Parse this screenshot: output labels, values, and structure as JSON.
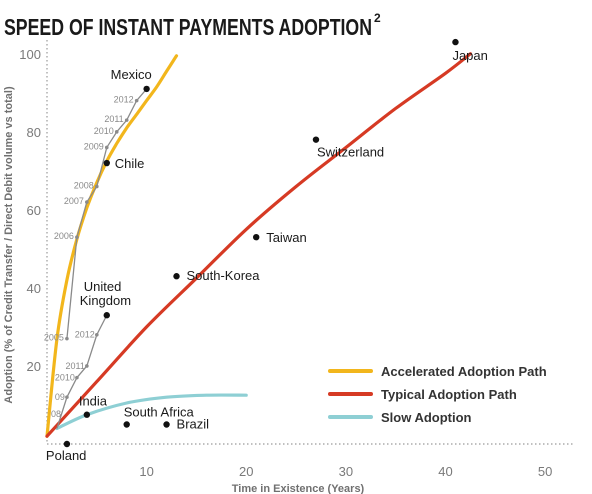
{
  "chart_data": {
    "type": "line",
    "title": "SPEED OF INSTANT PAYMENTS ADOPTION",
    "title_superscript": "2",
    "xlabel": "Time in Existence (Years)",
    "ylabel": "Adoption (% of Credit Transfer / Direct Debit  volume vs total)",
    "xlim": [
      0,
      53
    ],
    "ylim": [
      0,
      102
    ],
    "x_ticks": [
      "10",
      "20",
      "30",
      "40",
      "50"
    ],
    "y_ticks": [
      "20",
      "40",
      "60",
      "80",
      "100"
    ],
    "grid": false,
    "legend_position": "bottom-right",
    "series": [
      {
        "name": "Accelerated Adoption Path",
        "color": "#F2B61C",
        "x": [
          0,
          1,
          2,
          3,
          4,
          5,
          6,
          7,
          8,
          9,
          10,
          11,
          12,
          13
        ],
        "y": [
          2,
          27,
          42,
          52.5,
          60.5,
          67,
          72.5,
          77,
          81,
          84.5,
          88,
          91.5,
          95.5,
          99.5
        ]
      },
      {
        "name": "Typical Adoption Path",
        "color": "#D63A24",
        "x": [
          0,
          5,
          10,
          15,
          20,
          25,
          30,
          35,
          40,
          42.5
        ],
        "y": [
          2,
          16,
          30,
          42.5,
          55,
          66,
          76,
          86,
          95,
          100
        ]
      },
      {
        "name": "Slow Adoption",
        "color": "#8ECFD4",
        "x": [
          1,
          4,
          8,
          12,
          16,
          20
        ],
        "y": [
          4,
          7.5,
          10.5,
          12,
          12.5,
          12.5
        ]
      }
    ],
    "country_points": [
      {
        "label": "Mexico",
        "x": 10,
        "y": 91
      },
      {
        "label": "Chile",
        "x": 6,
        "y": 72
      },
      {
        "label": "Japan",
        "x": 41,
        "y": 103
      },
      {
        "label": "Switzerland",
        "x": 27,
        "y": 78
      },
      {
        "label": "Taiwan",
        "x": 21,
        "y": 53
      },
      {
        "label": "South-Korea",
        "x": 13,
        "y": 43
      },
      {
        "label": "United Kingdom",
        "x": 6,
        "y": 33
      },
      {
        "label": "India",
        "x": 4,
        "y": 7.5
      },
      {
        "label": "South Africa",
        "x": 8,
        "y": 5
      },
      {
        "label": "Brazil",
        "x": 12,
        "y": 5
      },
      {
        "label": "Poland",
        "x": 2,
        "y": 0
      }
    ],
    "mexico_path": {
      "color": "#8a8a8a",
      "points": [
        {
          "year": "2005",
          "x": 2,
          "y": 27
        },
        {
          "year": "2006",
          "x": 3,
          "y": 53
        },
        {
          "year": "2007",
          "x": 4,
          "y": 62
        },
        {
          "year": "2008",
          "x": 5,
          "y": 66
        },
        {
          "year": "2009",
          "x": 6,
          "y": 76
        },
        {
          "year": "2010",
          "x": 7,
          "y": 80
        },
        {
          "year": "2011",
          "x": 8,
          "y": 83
        },
        {
          "year": "2012",
          "x": 9,
          "y": 88
        },
        {
          "year": "",
          "x": 10,
          "y": 91
        }
      ]
    },
    "uk_path": {
      "color": "#8a8a8a",
      "points": [
        {
          "year": "",
          "x": 1,
          "y": 4
        },
        {
          "year": "09",
          "x": 2,
          "y": 12
        },
        {
          "year": "2010",
          "x": 3,
          "y": 17
        },
        {
          "year": "2011",
          "x": 4,
          "y": 20
        },
        {
          "year": "2012",
          "x": 5,
          "y": 28
        },
        {
          "year": "",
          "x": 6,
          "y": 33
        }
      ]
    },
    "extra_year_labels": [
      {
        "text": "08",
        "x": 0,
        "y": 8
      }
    ]
  }
}
